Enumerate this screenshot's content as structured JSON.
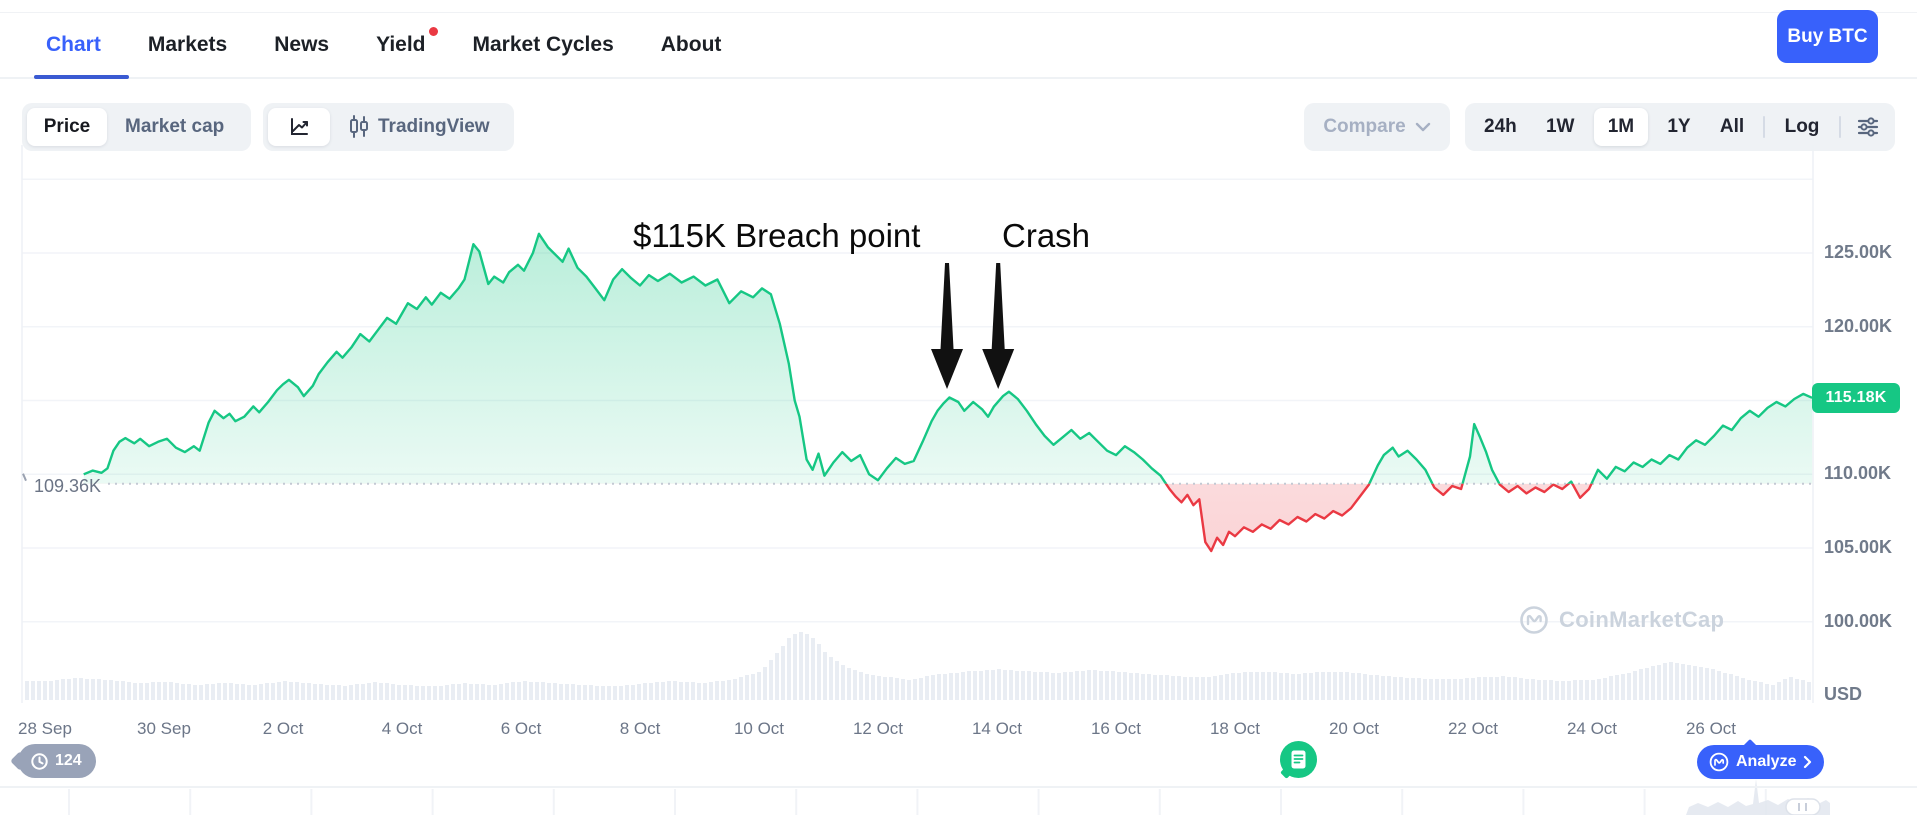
{
  "nav": {
    "tabs": [
      {
        "label": "Chart",
        "active": true
      },
      {
        "label": "Markets",
        "active": false
      },
      {
        "label": "News",
        "active": false
      },
      {
        "label": "Yield",
        "active": false,
        "notification_dot": true
      },
      {
        "label": "Market Cycles",
        "active": false
      },
      {
        "label": "About",
        "active": false
      }
    ],
    "buy_button_label": "Buy BTC"
  },
  "toolbar": {
    "metric_tabs": [
      "Price",
      "Market cap"
    ],
    "metric_active": "Price",
    "tradingview_label": "TradingView",
    "compare_label": "Compare",
    "range_tabs": [
      "24h",
      "1W",
      "1M",
      "1Y",
      "All"
    ],
    "range_active": "1M",
    "log_label": "Log"
  },
  "chart": {
    "annotations": [
      {
        "text": "$115K Breach point"
      },
      {
        "text": "Crash"
      }
    ],
    "baseline_label": "109.36K",
    "last_price_badge": "115.18K",
    "currency_label": "USD",
    "x_axis_labels": [
      "28 Sep",
      "30 Sep",
      "2 Oct",
      "4 Oct",
      "6 Oct",
      "8 Oct",
      "10 Oct",
      "12 Oct",
      "14 Oct",
      "16 Oct",
      "18 Oct",
      "20 Oct",
      "22 Oct",
      "24 Oct",
      "26 Oct"
    ],
    "watermark_label": "CoinMarketCap",
    "history_count": "124",
    "analyze_label": "Analyze"
  },
  "colors": {
    "brand_blue": "#3861fb",
    "up_green": "#16c784",
    "down_red": "#ea3943",
    "badge_green": "#16c784",
    "muted_text": "#58667e",
    "axis_text": "#707a8a"
  },
  "chart_data": {
    "type": "area",
    "title": "BTC price, 1M range with annotations",
    "x_unit": "days since 28 Sep (0 = 28 Sep, 29 = 27 Oct)",
    "y_unit": "USD thousands",
    "ylim": [
      97,
      131
    ],
    "baseline_value": 109.36,
    "last_price": 115.18,
    "y_gridline_values": [
      130,
      125,
      120,
      115,
      110,
      105,
      100
    ],
    "y_axis_labels": [
      {
        "label": "125.00K",
        "value": 125
      },
      {
        "label": "120.00K",
        "value": 120
      },
      {
        "label": "110.00K",
        "value": 110
      },
      {
        "label": "105.00K",
        "value": 105
      },
      {
        "label": "100.00K",
        "value": 100
      }
    ],
    "annotation_points": [
      {
        "label": "$115K Breach point",
        "day": 15.16,
        "value": 115.2
      },
      {
        "label": "Crash",
        "day": 16.02,
        "value": 115.6
      }
    ],
    "price_series": [
      [
        0.65,
        110.0
      ],
      [
        0.8,
        110.25
      ],
      [
        0.95,
        110.1
      ],
      [
        1.05,
        110.4
      ],
      [
        1.15,
        111.6
      ],
      [
        1.25,
        112.2
      ],
      [
        1.35,
        112.45
      ],
      [
        1.5,
        112.1
      ],
      [
        1.6,
        112.4
      ],
      [
        1.75,
        111.9
      ],
      [
        1.9,
        112.2
      ],
      [
        2.05,
        112.4
      ],
      [
        2.2,
        111.8
      ],
      [
        2.35,
        111.5
      ],
      [
        2.5,
        111.9
      ],
      [
        2.6,
        111.6
      ],
      [
        2.75,
        113.5
      ],
      [
        2.85,
        114.3
      ],
      [
        3.0,
        113.8
      ],
      [
        3.1,
        114.1
      ],
      [
        3.2,
        113.6
      ],
      [
        3.35,
        113.9
      ],
      [
        3.5,
        114.6
      ],
      [
        3.6,
        114.2
      ],
      [
        3.75,
        114.9
      ],
      [
        3.9,
        115.7
      ],
      [
        4.0,
        116.1
      ],
      [
        4.1,
        116.4
      ],
      [
        4.25,
        115.9
      ],
      [
        4.35,
        115.3
      ],
      [
        4.5,
        116.0
      ],
      [
        4.6,
        116.8
      ],
      [
        4.75,
        117.6
      ],
      [
        4.9,
        118.3
      ],
      [
        5.0,
        117.9
      ],
      [
        5.15,
        118.6
      ],
      [
        5.3,
        119.5
      ],
      [
        5.45,
        119.0
      ],
      [
        5.6,
        119.8
      ],
      [
        5.75,
        120.6
      ],
      [
        5.9,
        120.2
      ],
      [
        6.0,
        120.9
      ],
      [
        6.1,
        121.6
      ],
      [
        6.25,
        121.2
      ],
      [
        6.4,
        122.0
      ],
      [
        6.5,
        121.5
      ],
      [
        6.65,
        122.3
      ],
      [
        6.8,
        121.9
      ],
      [
        6.95,
        122.6
      ],
      [
        7.05,
        123.2
      ],
      [
        7.2,
        125.6
      ],
      [
        7.3,
        125.1
      ],
      [
        7.45,
        122.9
      ],
      [
        7.55,
        123.4
      ],
      [
        7.7,
        123.0
      ],
      [
        7.8,
        123.7
      ],
      [
        7.95,
        124.2
      ],
      [
        8.05,
        123.8
      ],
      [
        8.2,
        125.0
      ],
      [
        8.3,
        126.3
      ],
      [
        8.45,
        125.4
      ],
      [
        8.55,
        125.0
      ],
      [
        8.7,
        124.4
      ],
      [
        8.8,
        125.3
      ],
      [
        8.95,
        124.0
      ],
      [
        9.1,
        123.4
      ],
      [
        9.25,
        122.6
      ],
      [
        9.4,
        121.8
      ],
      [
        9.55,
        123.2
      ],
      [
        9.7,
        123.9
      ],
      [
        9.85,
        123.3
      ],
      [
        10.0,
        122.8
      ],
      [
        10.15,
        123.5
      ],
      [
        10.3,
        123.1
      ],
      [
        10.5,
        123.6
      ],
      [
        10.7,
        123.0
      ],
      [
        10.9,
        123.4
      ],
      [
        11.1,
        122.8
      ],
      [
        11.3,
        123.2
      ],
      [
        11.5,
        121.6
      ],
      [
        11.7,
        122.4
      ],
      [
        11.9,
        122.0
      ],
      [
        12.05,
        122.6
      ],
      [
        12.2,
        122.2
      ],
      [
        12.35,
        120.2
      ],
      [
        12.5,
        117.5
      ],
      [
        12.6,
        115.0
      ],
      [
        12.68,
        113.9
      ],
      [
        12.8,
        111.0
      ],
      [
        12.9,
        110.3
      ],
      [
        13.0,
        111.4
      ],
      [
        13.1,
        109.9
      ],
      [
        13.25,
        110.8
      ],
      [
        13.4,
        111.5
      ],
      [
        13.55,
        110.9
      ],
      [
        13.7,
        111.3
      ],
      [
        13.85,
        110.0
      ],
      [
        14.0,
        109.6
      ],
      [
        14.15,
        110.4
      ],
      [
        14.3,
        111.1
      ],
      [
        14.45,
        110.7
      ],
      [
        14.6,
        110.9
      ],
      [
        14.75,
        112.2
      ],
      [
        14.9,
        113.6
      ],
      [
        15.0,
        114.3
      ],
      [
        15.1,
        114.8
      ],
      [
        15.2,
        115.2
      ],
      [
        15.35,
        114.9
      ],
      [
        15.45,
        114.3
      ],
      [
        15.6,
        114.9
      ],
      [
        15.75,
        114.4
      ],
      [
        15.85,
        113.9
      ],
      [
        15.95,
        114.6
      ],
      [
        16.1,
        115.3
      ],
      [
        16.2,
        115.6
      ],
      [
        16.35,
        115.1
      ],
      [
        16.5,
        114.3
      ],
      [
        16.65,
        113.4
      ],
      [
        16.8,
        112.6
      ],
      [
        16.95,
        112.0
      ],
      [
        17.1,
        112.5
      ],
      [
        17.25,
        113.0
      ],
      [
        17.4,
        112.4
      ],
      [
        17.55,
        112.8
      ],
      [
        17.7,
        112.2
      ],
      [
        17.85,
        111.6
      ],
      [
        18.0,
        111.3
      ],
      [
        18.15,
        111.9
      ],
      [
        18.3,
        111.5
      ],
      [
        18.45,
        111.0
      ],
      [
        18.6,
        110.4
      ],
      [
        18.75,
        109.9
      ],
      [
        18.9,
        109.0
      ],
      [
        19.0,
        108.5
      ],
      [
        19.1,
        108.1
      ],
      [
        19.2,
        108.6
      ],
      [
        19.3,
        107.9
      ],
      [
        19.4,
        108.3
      ],
      [
        19.5,
        105.4
      ],
      [
        19.6,
        104.8
      ],
      [
        19.7,
        105.7
      ],
      [
        19.8,
        105.2
      ],
      [
        19.9,
        106.1
      ],
      [
        20.0,
        105.8
      ],
      [
        20.15,
        106.4
      ],
      [
        20.3,
        106.1
      ],
      [
        20.45,
        106.6
      ],
      [
        20.6,
        106.3
      ],
      [
        20.75,
        106.9
      ],
      [
        20.9,
        106.6
      ],
      [
        21.05,
        107.1
      ],
      [
        21.2,
        106.8
      ],
      [
        21.35,
        107.3
      ],
      [
        21.5,
        107.0
      ],
      [
        21.65,
        107.5
      ],
      [
        21.8,
        107.2
      ],
      [
        21.95,
        107.7
      ],
      [
        22.1,
        108.5
      ],
      [
        22.25,
        109.3
      ],
      [
        22.4,
        110.6
      ],
      [
        22.5,
        111.3
      ],
      [
        22.65,
        111.8
      ],
      [
        22.75,
        111.2
      ],
      [
        22.9,
        111.6
      ],
      [
        23.05,
        111.0
      ],
      [
        23.2,
        110.3
      ],
      [
        23.35,
        109.1
      ],
      [
        23.5,
        108.6
      ],
      [
        23.65,
        109.2
      ],
      [
        23.8,
        109.0
      ],
      [
        23.95,
        111.2
      ],
      [
        24.02,
        113.4
      ],
      [
        24.12,
        112.5
      ],
      [
        24.22,
        111.5
      ],
      [
        24.32,
        110.3
      ],
      [
        24.45,
        109.3
      ],
      [
        24.6,
        108.8
      ],
      [
        24.75,
        109.2
      ],
      [
        24.9,
        108.7
      ],
      [
        25.05,
        109.1
      ],
      [
        25.2,
        108.8
      ],
      [
        25.35,
        109.3
      ],
      [
        25.5,
        109.0
      ],
      [
        25.65,
        109.5
      ],
      [
        25.8,
        108.4
      ],
      [
        25.95,
        109.0
      ],
      [
        26.1,
        110.3
      ],
      [
        26.25,
        109.7
      ],
      [
        26.4,
        110.5
      ],
      [
        26.55,
        110.2
      ],
      [
        26.7,
        110.8
      ],
      [
        26.85,
        110.5
      ],
      [
        27.0,
        111.0
      ],
      [
        27.15,
        110.7
      ],
      [
        27.3,
        111.3
      ],
      [
        27.45,
        111.0
      ],
      [
        27.6,
        111.8
      ],
      [
        27.75,
        112.3
      ],
      [
        27.9,
        112.0
      ],
      [
        28.05,
        112.6
      ],
      [
        28.2,
        113.3
      ],
      [
        28.35,
        113.0
      ],
      [
        28.5,
        113.8
      ],
      [
        28.65,
        114.3
      ],
      [
        28.8,
        113.9
      ],
      [
        28.95,
        114.5
      ],
      [
        29.1,
        114.9
      ],
      [
        29.25,
        114.6
      ],
      [
        29.4,
        115.1
      ],
      [
        29.55,
        115.45
      ],
      [
        29.7,
        115.18
      ]
    ],
    "volume_envelope": [
      [
        0,
        0.28
      ],
      [
        0.5,
        0.32
      ],
      [
        1,
        0.3
      ],
      [
        1.5,
        0.25
      ],
      [
        2,
        0.27
      ],
      [
        2.5,
        0.22
      ],
      [
        3,
        0.25
      ],
      [
        3.5,
        0.22
      ],
      [
        4,
        0.28
      ],
      [
        4.5,
        0.24
      ],
      [
        5,
        0.21
      ],
      [
        5.5,
        0.26
      ],
      [
        6,
        0.22
      ],
      [
        6.5,
        0.2
      ],
      [
        7,
        0.25
      ],
      [
        7.5,
        0.22
      ],
      [
        8,
        0.28
      ],
      [
        8.5,
        0.25
      ],
      [
        9,
        0.22
      ],
      [
        9.5,
        0.2
      ],
      [
        10,
        0.24
      ],
      [
        10.5,
        0.28
      ],
      [
        11,
        0.25
      ],
      [
        11.5,
        0.3
      ],
      [
        12,
        0.42
      ],
      [
        12.3,
        0.72
      ],
      [
        12.5,
        0.95
      ],
      [
        12.7,
        1.0
      ],
      [
        12.9,
        0.9
      ],
      [
        13.1,
        0.68
      ],
      [
        13.4,
        0.5
      ],
      [
        13.7,
        0.4
      ],
      [
        14,
        0.35
      ],
      [
        14.5,
        0.3
      ],
      [
        15,
        0.38
      ],
      [
        15.5,
        0.42
      ],
      [
        16,
        0.45
      ],
      [
        16.5,
        0.42
      ],
      [
        17,
        0.4
      ],
      [
        17.5,
        0.44
      ],
      [
        18,
        0.42
      ],
      [
        18.5,
        0.38
      ],
      [
        19,
        0.35
      ],
      [
        19.5,
        0.33
      ],
      [
        20,
        0.4
      ],
      [
        20.5,
        0.42
      ],
      [
        21,
        0.38
      ],
      [
        21.5,
        0.42
      ],
      [
        22,
        0.4
      ],
      [
        22.5,
        0.35
      ],
      [
        23,
        0.32
      ],
      [
        23.5,
        0.3
      ],
      [
        24,
        0.33
      ],
      [
        24.5,
        0.35
      ],
      [
        25,
        0.3
      ],
      [
        25.5,
        0.28
      ],
      [
        26,
        0.3
      ],
      [
        26.5,
        0.38
      ],
      [
        27,
        0.5
      ],
      [
        27.3,
        0.56
      ],
      [
        27.6,
        0.52
      ],
      [
        28,
        0.45
      ],
      [
        28.3,
        0.38
      ],
      [
        28.6,
        0.3
      ],
      [
        29,
        0.22
      ],
      [
        29.3,
        0.34
      ],
      [
        29.7,
        0.24
      ]
    ]
  }
}
